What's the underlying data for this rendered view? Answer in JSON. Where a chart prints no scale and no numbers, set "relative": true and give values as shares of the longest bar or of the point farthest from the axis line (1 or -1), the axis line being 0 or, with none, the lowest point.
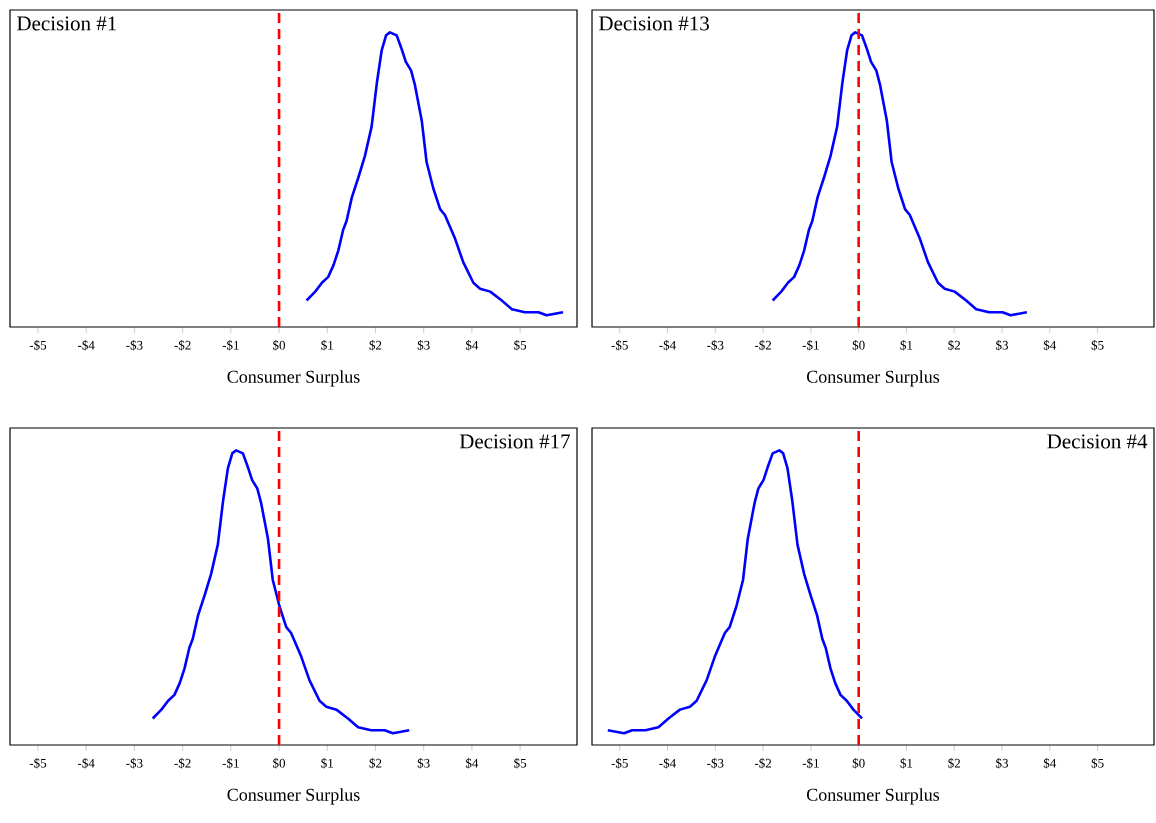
{
  "chart_data": [
    {
      "type": "line",
      "title": "Decision #1",
      "xlabel": "Consumer Surplus",
      "relative": true,
      "xlim": [
        -5.58,
        6.18
      ],
      "xticks": [
        {
          "value": -5,
          "label": "-$5"
        },
        {
          "value": -4,
          "label": "-$4"
        },
        {
          "value": -3,
          "label": "-$3"
        },
        {
          "value": -2,
          "label": "-$2"
        },
        {
          "value": -1,
          "label": "-$1"
        },
        {
          "value": 0,
          "label": "$0"
        },
        {
          "value": 1,
          "label": "$1"
        },
        {
          "value": 2,
          "label": "$2"
        },
        {
          "value": 3,
          "label": "$3"
        },
        {
          "value": 4,
          "label": "$4"
        },
        {
          "value": 5,
          "label": "$5"
        }
      ],
      "ref_lines": [
        {
          "axis": "x",
          "value": 0,
          "color": "#ff0000",
          "line_style": "dashed"
        }
      ],
      "series": [
        {
          "color": "#0000ff",
          "x": [
            0.57,
            0.75,
            0.89,
            1.02,
            1.13,
            1.23,
            1.33,
            1.4,
            1.51,
            1.65,
            1.78,
            1.92,
            2.03,
            2.13,
            2.22,
            2.3,
            2.44,
            2.55,
            2.63,
            2.74,
            2.82,
            2.96,
            3.06,
            3.2,
            3.34,
            3.44,
            3.65,
            3.82,
            4.03,
            4.17,
            4.38,
            4.62,
            4.83,
            5.1,
            5.38,
            5.55,
            5.89
          ],
          "values": [
            0.09,
            0.12,
            0.15,
            0.17,
            0.21,
            0.26,
            0.33,
            0.36,
            0.44,
            0.51,
            0.58,
            0.68,
            0.83,
            0.94,
            0.99,
            1,
            0.99,
            0.94,
            0.9,
            0.87,
            0.82,
            0.7,
            0.56,
            0.47,
            0.4,
            0.38,
            0.3,
            0.22,
            0.15,
            0.13,
            0.12,
            0.09,
            0.06,
            0.05,
            0.05,
            0.04,
            0.05
          ]
        }
      ]
    },
    {
      "type": "line",
      "title": "Decision #13",
      "xlabel": "Consumer Surplus",
      "relative": true,
      "xlim": [
        -5.58,
        6.18
      ],
      "xticks": [
        {
          "value": -5,
          "label": "-$5"
        },
        {
          "value": -4,
          "label": "-$4"
        },
        {
          "value": -3,
          "label": "-$3"
        },
        {
          "value": -2,
          "label": "-$2"
        },
        {
          "value": -1,
          "label": "-$1"
        },
        {
          "value": 0,
          "label": "$0"
        },
        {
          "value": 1,
          "label": "$1"
        },
        {
          "value": 2,
          "label": "$2"
        },
        {
          "value": 3,
          "label": "$3"
        },
        {
          "value": 4,
          "label": "$4"
        },
        {
          "value": 5,
          "label": "$5"
        }
      ],
      "ref_lines": [
        {
          "axis": "x",
          "value": 0,
          "color": "#ff0000",
          "line_style": "dashed"
        }
      ],
      "series": [
        {
          "color": "#0000ff",
          "x": [
            -1.8,
            -1.62,
            -1.48,
            -1.35,
            -1.24,
            -1.14,
            -1.04,
            -0.97,
            -0.86,
            -0.72,
            -0.59,
            -0.45,
            -0.34,
            -0.24,
            -0.15,
            -0.07,
            0.07,
            0.18,
            0.26,
            0.37,
            0.45,
            0.59,
            0.69,
            0.83,
            0.97,
            1.07,
            1.28,
            1.45,
            1.66,
            1.8,
            2.01,
            2.25,
            2.46,
            2.73,
            3.01,
            3.18,
            3.52
          ],
          "values": [
            0.09,
            0.12,
            0.15,
            0.17,
            0.21,
            0.26,
            0.33,
            0.36,
            0.44,
            0.51,
            0.58,
            0.68,
            0.83,
            0.94,
            0.99,
            1,
            0.99,
            0.94,
            0.9,
            0.87,
            0.82,
            0.7,
            0.56,
            0.47,
            0.4,
            0.38,
            0.3,
            0.22,
            0.15,
            0.13,
            0.12,
            0.09,
            0.06,
            0.05,
            0.05,
            0.04,
            0.05
          ]
        }
      ]
    },
    {
      "type": "line",
      "title": "Decision #17",
      "xlabel": "Consumer Surplus",
      "relative": true,
      "xlim": [
        -5.58,
        6.18
      ],
      "xticks": [
        {
          "value": -5,
          "label": "-$5"
        },
        {
          "value": -4,
          "label": "-$4"
        },
        {
          "value": -3,
          "label": "-$3"
        },
        {
          "value": -2,
          "label": "-$2"
        },
        {
          "value": -1,
          "label": "-$1"
        },
        {
          "value": 0,
          "label": "$0"
        },
        {
          "value": 1,
          "label": "$1"
        },
        {
          "value": 2,
          "label": "$2"
        },
        {
          "value": 3,
          "label": "$3"
        },
        {
          "value": 4,
          "label": "$4"
        },
        {
          "value": 5,
          "label": "$5"
        }
      ],
      "ref_lines": [
        {
          "axis": "x",
          "value": 0,
          "color": "#ff0000",
          "line_style": "dashed"
        }
      ],
      "series": [
        {
          "color": "#0000ff",
          "x": [
            -2.62,
            -2.44,
            -2.3,
            -2.17,
            -2.06,
            -1.96,
            -1.86,
            -1.79,
            -1.68,
            -1.54,
            -1.41,
            -1.27,
            -1.16,
            -1.06,
            -0.97,
            -0.89,
            -0.75,
            -0.64,
            -0.56,
            -0.45,
            -0.37,
            -0.23,
            -0.13,
            0.01,
            0.15,
            0.25,
            0.46,
            0.63,
            0.84,
            0.98,
            1.19,
            1.43,
            1.64,
            1.91,
            2.19,
            2.36,
            2.7
          ],
          "values": [
            0.09,
            0.12,
            0.15,
            0.17,
            0.21,
            0.26,
            0.33,
            0.36,
            0.44,
            0.51,
            0.58,
            0.68,
            0.83,
            0.94,
            0.99,
            1,
            0.99,
            0.94,
            0.9,
            0.87,
            0.82,
            0.7,
            0.56,
            0.47,
            0.4,
            0.38,
            0.3,
            0.22,
            0.15,
            0.13,
            0.12,
            0.09,
            0.06,
            0.05,
            0.05,
            0.04,
            0.05
          ]
        }
      ]
    },
    {
      "type": "line",
      "title": "Decision #4",
      "xlabel": "Consumer Surplus",
      "relative": true,
      "xlim": [
        -5.58,
        6.18
      ],
      "xticks": [
        {
          "value": -5,
          "label": "-$5"
        },
        {
          "value": -4,
          "label": "-$4"
        },
        {
          "value": -3,
          "label": "-$3"
        },
        {
          "value": -2,
          "label": "-$2"
        },
        {
          "value": -1,
          "label": "-$1"
        },
        {
          "value": 0,
          "label": "$0"
        },
        {
          "value": 1,
          "label": "$1"
        },
        {
          "value": 2,
          "label": "$2"
        },
        {
          "value": 3,
          "label": "$3"
        },
        {
          "value": 4,
          "label": "$4"
        },
        {
          "value": 5,
          "label": "$5"
        }
      ],
      "ref_lines": [
        {
          "axis": "x",
          "value": 0,
          "color": "#ff0000",
          "line_style": "dashed"
        }
      ],
      "series": [
        {
          "color": "#0000ff",
          "x": [
            -5.25,
            -4.91,
            -4.74,
            -4.46,
            -4.19,
            -3.98,
            -3.74,
            -3.53,
            -3.39,
            -3.18,
            -3.01,
            -2.8,
            -2.7,
            -2.56,
            -2.42,
            -2.32,
            -2.18,
            -2.1,
            -1.99,
            -1.91,
            -1.8,
            -1.66,
            -1.58,
            -1.49,
            -1.39,
            -1.28,
            -1.14,
            -1.01,
            -0.87,
            -0.76,
            -0.69,
            -0.59,
            -0.49,
            -0.38,
            -0.25,
            -0.11,
            0.07
          ],
          "values": [
            0.05,
            0.04,
            0.05,
            0.05,
            0.06,
            0.09,
            0.12,
            0.13,
            0.15,
            0.22,
            0.3,
            0.38,
            0.4,
            0.47,
            0.56,
            0.7,
            0.82,
            0.87,
            0.9,
            0.94,
            0.99,
            1,
            0.99,
            0.94,
            0.83,
            0.68,
            0.58,
            0.51,
            0.44,
            0.36,
            0.33,
            0.26,
            0.21,
            0.17,
            0.15,
            0.12,
            0.09
          ]
        }
      ]
    }
  ]
}
